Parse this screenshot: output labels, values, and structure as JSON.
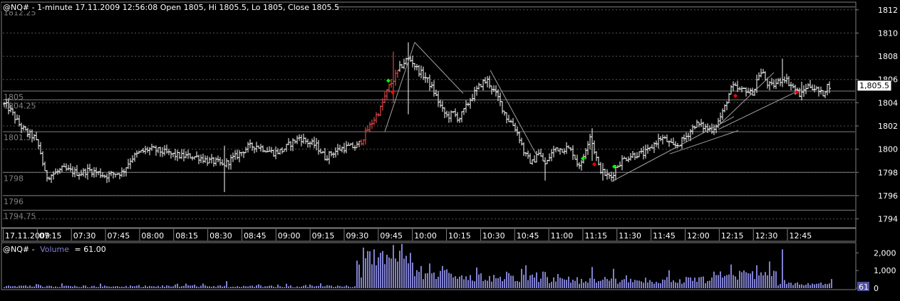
{
  "header": {
    "title": "@NQ# - 1-minute 17.11.2009 12:56:08 Open 1805, Hi 1805.5, Lo 1805, Close 1805.5"
  },
  "volume_header": {
    "symbol": "@NQ# -",
    "label": "Volume",
    "value_text": "= 61.00"
  },
  "price_tag": "1,805.5",
  "volume_tag": "61",
  "colors": {
    "background": "#000000",
    "bar_up": "#ffffff",
    "bar_down": "#ffffff",
    "bar_trend_red": "#ff5050",
    "marker_buy": "#00ff00",
    "marker_sell": "#ff0000",
    "volume_bar": "#8080d0",
    "grid": "#555555",
    "frame": "#808080",
    "text": "#ffffff",
    "dim_text": "#808080"
  },
  "chart_data": [
    {
      "type": "ohlc",
      "title": "@NQ# - 1-minute 17.11.2009 12:56:08 Open 1805, Hi 1805.5, Lo 1805, Close 1805.5",
      "y_ticks": [
        1812,
        1810,
        1808,
        1806,
        1804,
        1802,
        1800,
        1798,
        1796,
        1794
      ],
      "ylim": [
        1793.3,
        1812.6
      ],
      "x_ticks": [
        "17.11.2009",
        "07:15",
        "07:30",
        "07:45",
        "08:00",
        "08:15",
        "08:30",
        "08:45",
        "09:00",
        "09:15",
        "09:30",
        "09:45",
        "10:00",
        "10:15",
        "10:30",
        "10:45",
        "11:00",
        "11:15",
        "11:30",
        "11:45",
        "12:00",
        "12:15",
        "12:30",
        "12:45"
      ],
      "left_labels": [
        {
          "text": "1812.25",
          "value": 1812.25
        },
        {
          "text": "1805",
          "value": 1805
        },
        {
          "text": "1804.25",
          "value": 1804.25
        },
        {
          "text": "1801.5",
          "value": 1801.5
        },
        {
          "text": "1798",
          "value": 1798
        },
        {
          "text": "1796",
          "value": 1796
        },
        {
          "text": "1794.75",
          "value": 1794.75
        }
      ],
      "reference_lines": [
        1812.25,
        1805,
        1804.25,
        1801.5,
        1798,
        1796,
        1794.75
      ],
      "last_price": 1805.5,
      "anchors": [
        [
          0,
          1804.0
        ],
        [
          8,
          1803.8
        ],
        [
          16,
          1803.2
        ],
        [
          26,
          1802.2
        ],
        [
          36,
          1801.5
        ],
        [
          48,
          1801.0
        ],
        [
          56,
          1800.0
        ],
        [
          64,
          1797.6
        ],
        [
          76,
          1797.9
        ],
        [
          88,
          1798.3
        ],
        [
          100,
          1798.1
        ],
        [
          112,
          1797.9
        ],
        [
          124,
          1798.2
        ],
        [
          136,
          1798.0
        ],
        [
          148,
          1797.7
        ],
        [
          160,
          1797.9
        ],
        [
          172,
          1798.0
        ],
        [
          184,
          1799.2
        ],
        [
          196,
          1799.7
        ],
        [
          208,
          1800.0
        ],
        [
          220,
          1799.9
        ],
        [
          232,
          1799.7
        ],
        [
          244,
          1799.5
        ],
        [
          256,
          1799.4
        ],
        [
          268,
          1799.4
        ],
        [
          280,
          1799.3
        ],
        [
          292,
          1799.0
        ],
        [
          304,
          1798.9
        ],
        [
          312,
          1798.6
        ],
        [
          318,
          1798.8
        ],
        [
          324,
          1799.1
        ],
        [
          336,
          1799.6
        ],
        [
          348,
          1800.2
        ],
        [
          360,
          1800.3
        ],
        [
          372,
          1800.0
        ],
        [
          384,
          1799.7
        ],
        [
          396,
          1799.9
        ],
        [
          408,
          1800.5
        ],
        [
          420,
          1801.0
        ],
        [
          432,
          1800.6
        ],
        [
          444,
          1800.3
        ],
        [
          456,
          1799.3
        ],
        [
          464,
          1799.6
        ],
        [
          476,
          1800.0
        ],
        [
          488,
          1800.2
        ],
        [
          500,
          1800.2
        ],
        [
          508,
          1800.8
        ],
        [
          516,
          1801.7
        ],
        [
          524,
          1802.5
        ],
        [
          534,
          1803.5
        ],
        [
          540,
          1804.5
        ],
        [
          546,
          1805.4
        ],
        [
          554,
          1806.2
        ],
        [
          560,
          1806.9
        ],
        [
          566,
          1807.4
        ],
        [
          572,
          1807.8
        ],
        [
          578,
          1807.6
        ],
        [
          584,
          1807.0
        ],
        [
          590,
          1806.6
        ],
        [
          598,
          1806.1
        ],
        [
          606,
          1805.3
        ],
        [
          614,
          1804.3
        ],
        [
          620,
          1803.4
        ],
        [
          628,
          1802.8
        ],
        [
          636,
          1803.1
        ],
        [
          644,
          1802.6
        ],
        [
          652,
          1803.4
        ],
        [
          660,
          1804.3
        ],
        [
          668,
          1805.0
        ],
        [
          676,
          1805.7
        ],
        [
          684,
          1805.9
        ],
        [
          692,
          1805.1
        ],
        [
          700,
          1804.3
        ],
        [
          706,
          1803.4
        ],
        [
          712,
          1802.6
        ],
        [
          718,
          1802.3
        ],
        [
          724,
          1801.7
        ],
        [
          730,
          1800.8
        ],
        [
          736,
          1799.6
        ],
        [
          742,
          1799.1
        ],
        [
          748,
          1798.8
        ],
        [
          754,
          1799.8
        ],
        [
          760,
          1799.2
        ],
        [
          766,
          1798.6
        ],
        [
          772,
          1799.5
        ],
        [
          780,
          1800.1
        ],
        [
          788,
          1800.0
        ],
        [
          796,
          1800.1
        ],
        [
          804,
          1799.7
        ],
        [
          810,
          1798.8
        ],
        [
          816,
          1798.7
        ],
        [
          822,
          1800.1
        ],
        [
          828,
          1801.2
        ],
        [
          834,
          1799.9
        ],
        [
          840,
          1798.5
        ],
        [
          846,
          1798.0
        ],
        [
          852,
          1797.7
        ],
        [
          858,
          1797.6
        ],
        [
          864,
          1798.4
        ],
        [
          872,
          1799.0
        ],
        [
          880,
          1799.3
        ],
        [
          888,
          1799.5
        ],
        [
          896,
          1799.6
        ],
        [
          904,
          1799.6
        ],
        [
          912,
          1800.0
        ],
        [
          920,
          1800.6
        ],
        [
          928,
          1801.0
        ],
        [
          936,
          1800.7
        ],
        [
          944,
          1800.2
        ],
        [
          952,
          1800.4
        ],
        [
          960,
          1800.9
        ],
        [
          968,
          1801.5
        ],
        [
          976,
          1802.2
        ],
        [
          984,
          1802.0
        ],
        [
          992,
          1801.8
        ],
        [
          1000,
          1801.7
        ],
        [
          1008,
          1802.4
        ],
        [
          1016,
          1803.4
        ],
        [
          1022,
          1804.6
        ],
        [
          1028,
          1805.4
        ],
        [
          1034,
          1805.2
        ],
        [
          1040,
          1805.0
        ],
        [
          1046,
          1805.2
        ],
        [
          1052,
          1804.8
        ],
        [
          1058,
          1805.0
        ],
        [
          1064,
          1806.4
        ],
        [
          1070,
          1806.6
        ],
        [
          1076,
          1805.7
        ],
        [
          1082,
          1805.4
        ],
        [
          1088,
          1805.6
        ],
        [
          1094,
          1805.9
        ],
        [
          1100,
          1806.2
        ],
        [
          1106,
          1805.8
        ],
        [
          1112,
          1805.4
        ],
        [
          1118,
          1805.0
        ],
        [
          1124,
          1804.6
        ],
        [
          1130,
          1805.3
        ],
        [
          1136,
          1805.5
        ],
        [
          1142,
          1805.3
        ],
        [
          1148,
          1805.0
        ],
        [
          1154,
          1804.7
        ],
        [
          1160,
          1805.4
        ],
        [
          1164,
          1805.5
        ]
      ],
      "spikes": [
        [
          316,
          1796.3,
          1800.3
        ],
        [
          552,
          1804.0,
          1808.4
        ],
        [
          574,
          1803.0,
          1809.2
        ],
        [
          830,
          1799.0,
          1801.8
        ],
        [
          1098,
          1805.4,
          1807.8
        ],
        [
          764,
          1797.3,
          1799.3
        ],
        [
          846,
          1797.3,
          1798.8
        ],
        [
          1126,
          1804.2,
          1805.8
        ]
      ],
      "trend_lines": [
        [
          [
            540,
            1801.5
          ],
          [
            582,
            1809.2
          ]
        ],
        [
          [
            582,
            1809.2
          ],
          [
            650,
            1804.8
          ]
        ],
        [
          [
            688,
            1806.8
          ],
          [
            752,
            1799.6
          ]
        ],
        [
          [
            858,
            1797.2
          ],
          [
            1030,
            1802.8
          ]
        ],
        [
          [
            940,
            1799.6
          ],
          [
            1036,
            1801.6
          ]
        ],
        [
          [
            1006,
            1801.9
          ],
          [
            1086,
            1806.6
          ]
        ],
        [
          [
            1008,
            1801.7
          ],
          [
            1126,
            1805.2
          ]
        ]
      ],
      "markers": [
        {
          "type": "buy",
          "x": 545,
          "y": 1805.9
        },
        {
          "type": "sell",
          "x": 551,
          "y": 1804.9
        },
        {
          "type": "buy",
          "x": 818,
          "y": 1799.2
        },
        {
          "type": "sell",
          "x": 834,
          "y": 1798.7
        },
        {
          "type": "buy",
          "x": 862,
          "y": 1798.5
        },
        {
          "type": "sell",
          "x": 1032,
          "y": 1804.6
        },
        {
          "type": "sell",
          "x": 1118,
          "y": 1804.9
        }
      ]
    },
    {
      "type": "bar",
      "title": "Volume",
      "y_ticks": [
        "2,000",
        "1,000",
        "0"
      ],
      "y_tick_values": [
        2000,
        1000,
        0
      ],
      "ylim": [
        0,
        2500
      ],
      "last_value": 61,
      "segments": [
        {
          "x0": 4,
          "x1": 500,
          "base": 50,
          "amp": 140
        },
        {
          "x0": 500,
          "x1": 508,
          "base": 600,
          "amp": 900
        },
        {
          "x0": 508,
          "x1": 580,
          "base": 1300,
          "amp": 1100
        },
        {
          "x0": 580,
          "x1": 640,
          "base": 500,
          "amp": 700
        },
        {
          "x0": 640,
          "x1": 760,
          "base": 350,
          "amp": 600
        },
        {
          "x0": 760,
          "x1": 1000,
          "base": 250,
          "amp": 500
        },
        {
          "x0": 1000,
          "x1": 1090,
          "base": 450,
          "amp": 700
        },
        {
          "x0": 1090,
          "x1": 1166,
          "base": 150,
          "amp": 250
        }
      ],
      "spikes": [
        [
          316,
          400
        ],
        [
          508,
          2300
        ],
        [
          524,
          2200
        ],
        [
          550,
          2450
        ],
        [
          574,
          2000
        ],
        [
          736,
          1300
        ],
        [
          830,
          1200
        ],
        [
          860,
          1100
        ],
        [
          1062,
          1300
        ],
        [
          1098,
          2200
        ],
        [
          1130,
          200
        ]
      ]
    }
  ]
}
